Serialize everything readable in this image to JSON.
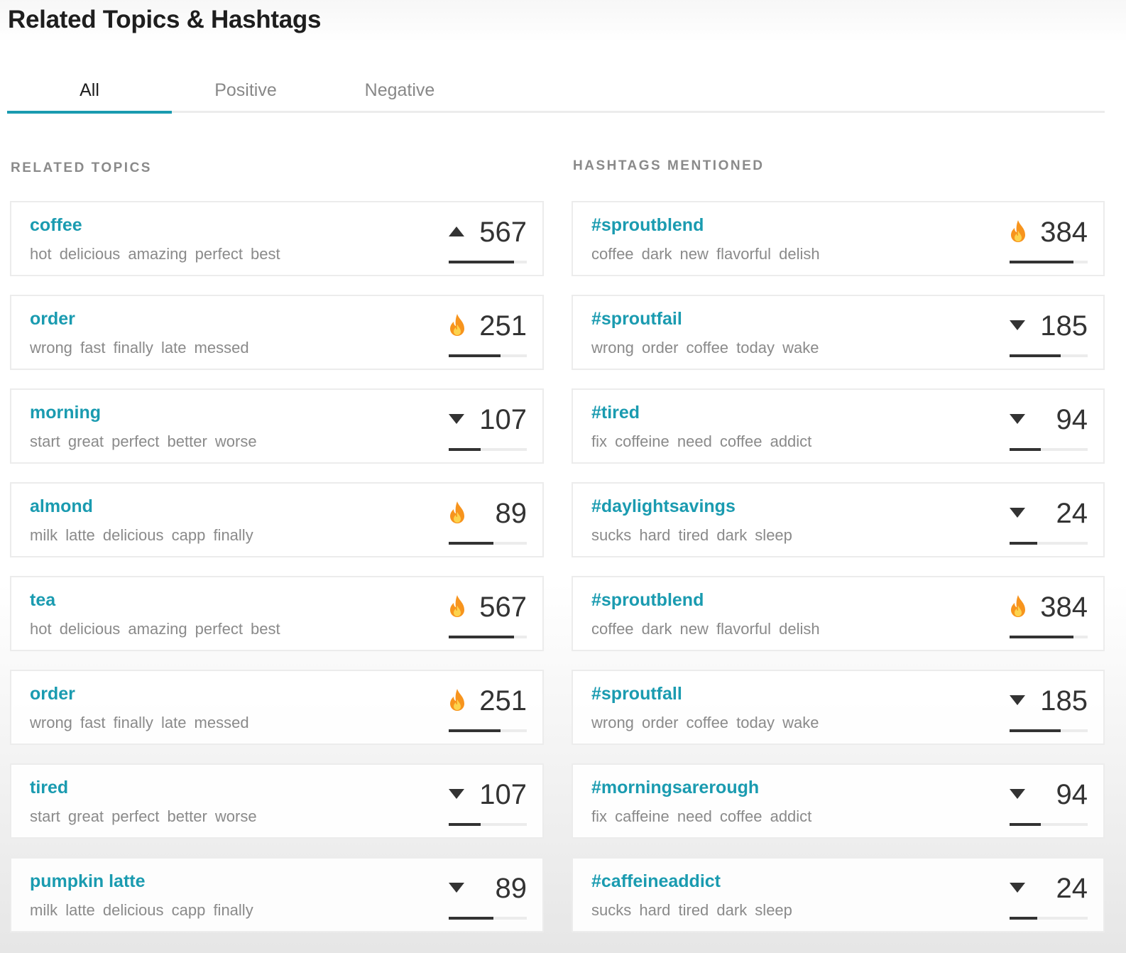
{
  "header": {
    "title": "Related Topics & Hashtags"
  },
  "tabs": [
    {
      "label": "All",
      "active": true
    },
    {
      "label": "Positive",
      "active": false
    },
    {
      "label": "Negative",
      "active": false
    }
  ],
  "accent": "#1a9bb0",
  "topics": {
    "heading": "RELATED TOPICS",
    "items": [
      {
        "name": "coffee",
        "words": "hot delicious amazing perfect best",
        "count": "567",
        "icon": "trend-up-icon",
        "fill": 0.84
      },
      {
        "name": "order",
        "words": "wrong fast finally late messed",
        "count": "251",
        "icon": "fire-icon",
        "fill": 0.66
      },
      {
        "name": "morning",
        "words": "start great perfect better worse",
        "count": "107",
        "icon": "trend-down-icon",
        "fill": 0.41
      },
      {
        "name": "almond",
        "words": "milk latte delicious capp finally",
        "count": "89",
        "icon": "fire-icon",
        "fill": 0.57
      },
      {
        "name": "tea",
        "words": "hot delicious amazing perfect best",
        "count": "567",
        "icon": "fire-icon",
        "fill": 0.84
      },
      {
        "name": "order",
        "words": "wrong fast finally late messed",
        "count": "251",
        "icon": "fire-icon",
        "fill": 0.66
      },
      {
        "name": "tired",
        "words": "start great perfect better worse",
        "count": "107",
        "icon": "trend-down-icon",
        "fill": 0.41
      },
      {
        "name": "pumpkin latte",
        "words": "milk latte delicious capp finally",
        "count": "89",
        "icon": "trend-down-icon",
        "fill": 0.57
      }
    ]
  },
  "hashtags": {
    "heading": "HASHTAGS MENTIONED",
    "items": [
      {
        "name": "#sproutblend",
        "words": "coffee dark new flavorful delish",
        "count": "384",
        "icon": "fire-icon",
        "fill": 0.82
      },
      {
        "name": "#sproutfail",
        "words": "wrong order coffee today wake",
        "count": "185",
        "icon": "trend-down-icon",
        "fill": 0.65
      },
      {
        "name": "#tired",
        "words": "fix coffeine need coffee addict",
        "count": "94",
        "icon": "trend-down-icon",
        "fill": 0.4
      },
      {
        "name": "#daylightsavings",
        "words": "sucks hard tired dark sleep",
        "count": "24",
        "icon": "trend-down-icon",
        "fill": 0.35
      },
      {
        "name": "#sproutblend",
        "words": "coffee dark new flavorful delish",
        "count": "384",
        "icon": "fire-icon",
        "fill": 0.82
      },
      {
        "name": "#sproutfall",
        "words": "wrong order coffee today wake",
        "count": "185",
        "icon": "trend-down-icon",
        "fill": 0.65
      },
      {
        "name": "#morningsarerough",
        "words": "fix caffeine need coffee addict",
        "count": "94",
        "icon": "trend-down-icon",
        "fill": 0.4
      },
      {
        "name": "#caffeineaddict",
        "words": "sucks hard tired dark sleep",
        "count": "24",
        "icon": "trend-down-icon",
        "fill": 0.35
      }
    ]
  }
}
